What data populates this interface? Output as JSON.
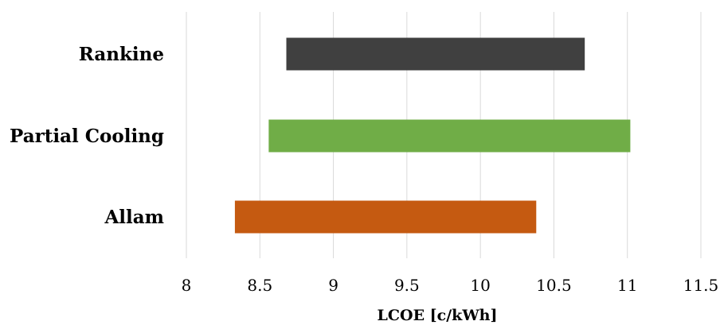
{
  "chart_data": {
    "type": "bar",
    "orientation": "horizontal",
    "subtype": "floating-range",
    "title": "",
    "xlabel": "LCOE [c/kWh]",
    "ylabel": "",
    "xlim": [
      8,
      11.5
    ],
    "xticks": [
      8,
      8.5,
      9,
      9.5,
      10,
      10.5,
      11,
      11.5
    ],
    "xtick_labels": [
      "8",
      "8.5",
      "9",
      "9.5",
      "10",
      "10.5",
      "11",
      "11.5"
    ],
    "grid": "vertical",
    "legend": "none",
    "categories": [
      "Rankine",
      "Partial Cooling",
      "Allam"
    ],
    "ranges": [
      {
        "category": "Rankine",
        "start": 8.68,
        "end": 10.71,
        "color": "#404040"
      },
      {
        "category": "Partial Cooling",
        "start": 8.56,
        "end": 11.02,
        "color": "#70ad47"
      },
      {
        "category": "Allam",
        "start": 8.33,
        "end": 10.38,
        "color": "#c55a11"
      }
    ]
  }
}
